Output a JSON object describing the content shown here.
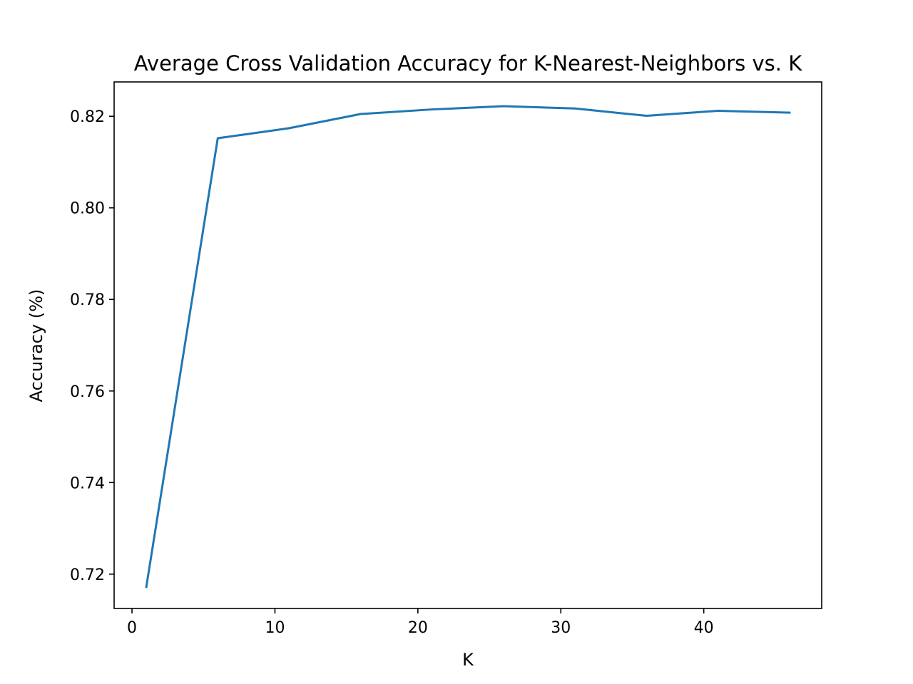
{
  "chart_data": {
    "type": "line",
    "title": "Average Cross Validation Accuracy for K-Nearest-Neighbors vs. K",
    "xlabel": "K",
    "ylabel": "Accuracy (%)",
    "xlim": [
      -1.25,
      48.25
    ],
    "ylim": [
      0.7125,
      0.8275
    ],
    "xticks": [
      0,
      10,
      20,
      30,
      40
    ],
    "yticks": [
      0.72,
      0.74,
      0.76,
      0.78,
      0.8,
      0.82
    ],
    "ytick_labels": [
      "0.72",
      "0.74",
      "0.76",
      "0.78",
      "0.80",
      "0.82"
    ],
    "grid": false,
    "series": [
      {
        "color": "#1f77b4",
        "x": [
          1,
          6,
          11,
          16,
          21,
          26,
          31,
          36,
          41,
          46
        ],
        "values": [
          0.7172,
          0.8152,
          0.8174,
          0.8205,
          0.8215,
          0.8222,
          0.8217,
          0.8201,
          0.8212,
          0.8208
        ]
      }
    ]
  }
}
